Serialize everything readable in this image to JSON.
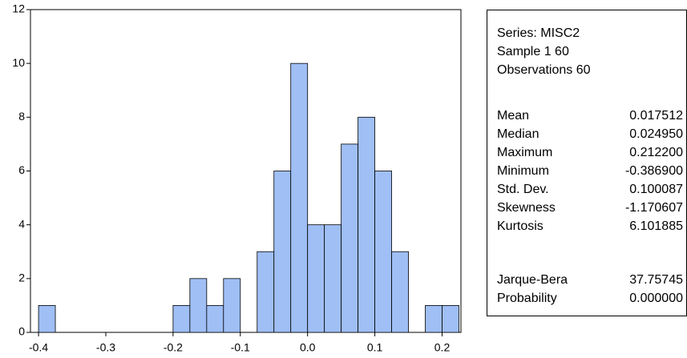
{
  "chart_data": {
    "type": "histogram",
    "bins": [
      -0.4,
      -0.375,
      -0.35,
      -0.325,
      -0.3,
      -0.275,
      -0.25,
      -0.225,
      -0.2,
      -0.175,
      -0.15,
      -0.125,
      -0.1,
      -0.075,
      -0.05,
      -0.025,
      0,
      0.025,
      0.05,
      0.075,
      0.1,
      0.125,
      0.15,
      0.175,
      0.2,
      0.225
    ],
    "values": [
      1,
      0,
      0,
      0,
      0,
      0,
      0,
      0,
      1,
      2,
      1,
      2,
      0,
      3,
      6,
      10,
      4,
      4,
      7,
      8,
      6,
      3,
      0,
      1,
      1
    ],
    "color": "#9fbff5",
    "xlim": [
      -0.412,
      0.228
    ],
    "xticks": [
      -0.4,
      -0.3,
      -0.2,
      -0.1,
      {
        "value": 0,
        "label": "0.0"
      },
      0.1,
      0.2
    ],
    "ylim": [
      0,
      12
    ],
    "yticks": [
      0,
      2,
      4,
      6,
      8,
      10,
      12
    ],
    "grid": false
  },
  "stats_panel": {
    "header": [
      "Series: MISC2",
      "Sample 1 60",
      "Observations 60"
    ],
    "rows": [
      [
        "Mean",
        "0.017512"
      ],
      [
        "Median",
        "0.024950"
      ],
      [
        "Maximum",
        "0.212200"
      ],
      [
        "Minimum",
        "-0.386900"
      ],
      [
        "Std. Dev.",
        "0.100087"
      ],
      [
        "Skewness",
        "-1.170607"
      ],
      [
        "Kurtosis",
        "6.101885"
      ]
    ],
    "test_rows": [
      [
        "Jarque-Bera",
        "37.75745"
      ],
      [
        "Probability",
        "0.000000"
      ]
    ]
  }
}
